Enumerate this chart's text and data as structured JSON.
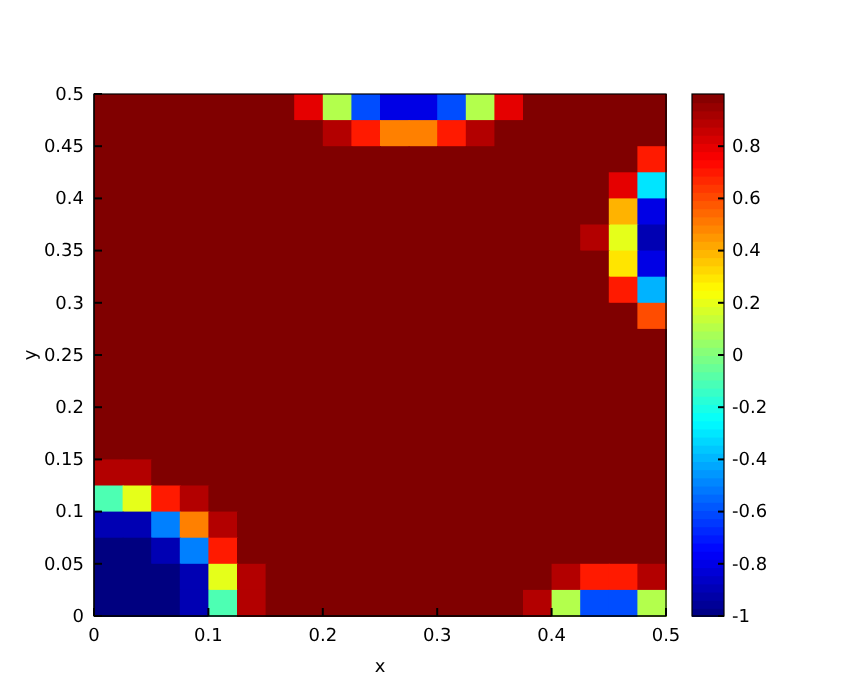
{
  "chart_data": {
    "type": "heatmap",
    "xlabel": "x",
    "ylabel": "y",
    "x": [
      0.0125,
      0.0375,
      0.0625,
      0.0875,
      0.1125,
      0.1375,
      0.1625,
      0.1875,
      0.2125,
      0.2375,
      0.2625,
      0.2875,
      0.3125,
      0.3375,
      0.3625,
      0.3875,
      0.4125,
      0.4375,
      0.4625,
      0.4875
    ],
    "y": [
      0.4875,
      0.4625,
      0.4375,
      0.4125,
      0.3875,
      0.3625,
      0.3375,
      0.3125,
      0.2875,
      0.2625,
      0.2375,
      0.2125,
      0.1875,
      0.1625,
      0.1375,
      0.1125,
      0.0875,
      0.0625,
      0.0375,
      0.0125
    ],
    "xlim": [
      0,
      0.5
    ],
    "xticks": [
      0,
      0.1,
      0.2,
      0.3,
      0.4,
      0.5
    ],
    "ylim": [
      0,
      0.5
    ],
    "yticks": [
      0,
      0.05,
      0.1,
      0.15,
      0.2,
      0.25,
      0.3,
      0.35,
      0.4,
      0.45,
      0.5
    ],
    "clim": [
      -1,
      1
    ],
    "cticks": [
      -1,
      -0.8,
      -0.6,
      -0.4,
      -0.2,
      0,
      0.2,
      0.4,
      0.6,
      0.8
    ],
    "cells": [
      [
        1,
        1,
        1,
        1,
        1,
        1,
        1,
        0.8,
        0.1,
        -0.6,
        -0.8,
        -0.8,
        -0.6,
        0.1,
        0.8,
        1,
        1,
        1,
        1,
        1
      ],
      [
        1,
        1,
        1,
        1,
        1,
        1,
        1,
        1,
        0.9,
        0.7,
        0.5,
        0.5,
        0.7,
        0.9,
        1,
        1,
        1,
        1,
        1,
        1
      ],
      [
        1,
        1,
        1,
        1,
        1,
        1,
        1,
        1,
        1,
        1,
        1,
        1,
        1,
        1,
        1,
        1,
        1,
        1,
        1,
        0.7
      ],
      [
        1,
        1,
        1,
        1,
        1,
        1,
        1,
        1,
        1,
        1,
        1,
        1,
        1,
        1,
        1,
        1,
        1,
        1,
        0.8,
        -0.3
      ],
      [
        1,
        1,
        1,
        1,
        1,
        1,
        1,
        1,
        1,
        1,
        1,
        1,
        1,
        1,
        1,
        1,
        1,
        1,
        0.4,
        -0.8
      ],
      [
        1,
        1,
        1,
        1,
        1,
        1,
        1,
        1,
        1,
        1,
        1,
        1,
        1,
        1,
        1,
        1,
        1,
        0.9,
        0.2,
        -0.9
      ],
      [
        1,
        1,
        1,
        1,
        1,
        1,
        1,
        1,
        1,
        1,
        1,
        1,
        1,
        1,
        1,
        1,
        1,
        1,
        0.3,
        -0.8
      ],
      [
        1,
        1,
        1,
        1,
        1,
        1,
        1,
        1,
        1,
        1,
        1,
        1,
        1,
        1,
        1,
        1,
        1,
        1,
        0.7,
        -0.4
      ],
      [
        1,
        1,
        1,
        1,
        1,
        1,
        1,
        1,
        1,
        1,
        1,
        1,
        1,
        1,
        1,
        1,
        1,
        1,
        1,
        0.6
      ],
      [
        1,
        1,
        1,
        1,
        1,
        1,
        1,
        1,
        1,
        1,
        1,
        1,
        1,
        1,
        1,
        1,
        1,
        1,
        1,
        1
      ],
      [
        1,
        1,
        1,
        1,
        1,
        1,
        1,
        1,
        1,
        1,
        1,
        1,
        1,
        1,
        1,
        1,
        1,
        1,
        1,
        1
      ],
      [
        1,
        1,
        1,
        1,
        1,
        1,
        1,
        1,
        1,
        1,
        1,
        1,
        1,
        1,
        1,
        1,
        1,
        1,
        1,
        1
      ],
      [
        1,
        1,
        1,
        1,
        1,
        1,
        1,
        1,
        1,
        1,
        1,
        1,
        1,
        1,
        1,
        1,
        1,
        1,
        1,
        1
      ],
      [
        1,
        1,
        1,
        1,
        1,
        1,
        1,
        1,
        1,
        1,
        1,
        1,
        1,
        1,
        1,
        1,
        1,
        1,
        1,
        1
      ],
      [
        0.9,
        0.9,
        1,
        1,
        1,
        1,
        1,
        1,
        1,
        1,
        1,
        1,
        1,
        1,
        1,
        1,
        1,
        1,
        1,
        1
      ],
      [
        -0.1,
        0.2,
        0.7,
        0.9,
        1,
        1,
        1,
        1,
        1,
        1,
        1,
        1,
        1,
        1,
        1,
        1,
        1,
        1,
        1,
        1
      ],
      [
        -0.9,
        -0.9,
        -0.5,
        0.5,
        0.9,
        1,
        1,
        1,
        1,
        1,
        1,
        1,
        1,
        1,
        1,
        1,
        1,
        1,
        1,
        1
      ],
      [
        -1,
        -1,
        -0.9,
        -0.5,
        0.7,
        1,
        1,
        1,
        1,
        1,
        1,
        1,
        1,
        1,
        1,
        1,
        1,
        1,
        1,
        1
      ],
      [
        -1,
        -1,
        -1,
        -0.9,
        0.2,
        0.9,
        1,
        1,
        1,
        1,
        1,
        1,
        1,
        1,
        1,
        1,
        0.9,
        0.7,
        0.7,
        0.9
      ],
      [
        -1,
        -1,
        -1,
        -0.9,
        -0.1,
        0.9,
        1,
        1,
        1,
        1,
        1,
        1,
        1,
        1,
        1,
        0.9,
        0.1,
        -0.6,
        -0.6,
        0.1
      ]
    ]
  }
}
